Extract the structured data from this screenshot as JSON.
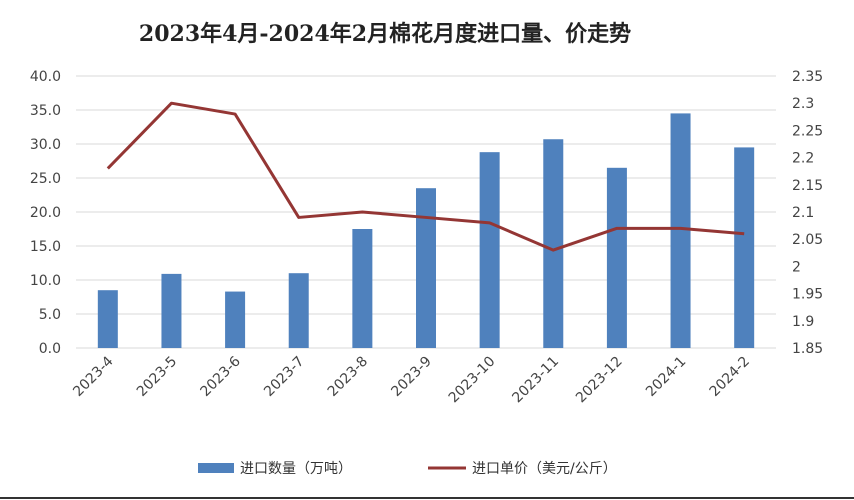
{
  "chart_data": {
    "type": "bar",
    "title": "2023年4月-2024年2月棉花月度进口量、价走势",
    "categories": [
      "2023-4",
      "2023-5",
      "2023-6",
      "2023-7",
      "2023-8",
      "2023-9",
      "2023-10",
      "2023-11",
      "2023-12",
      "2024-1",
      "2024-2"
    ],
    "series": [
      {
        "name": "进口数量（万吨）",
        "kind": "bar",
        "axis": "left",
        "color": "#4f81bd",
        "values": [
          8.5,
          10.9,
          8.3,
          11.0,
          17.5,
          23.5,
          28.8,
          30.7,
          26.5,
          34.5,
          29.5
        ]
      },
      {
        "name": "进口单价（美元/公斤）",
        "kind": "line",
        "axis": "right",
        "color": "#943634",
        "values": [
          2.18,
          2.3,
          2.28,
          2.09,
          2.1,
          2.09,
          2.08,
          2.03,
          2.07,
          2.07,
          2.06
        ]
      }
    ],
    "y_left": {
      "ylim": [
        0,
        40
      ],
      "ticks": [
        "0.0",
        "5.0",
        "10.0",
        "15.0",
        "20.0",
        "25.0",
        "30.0",
        "35.0",
        "40.0"
      ]
    },
    "y_right": {
      "ylim": [
        1.85,
        2.35
      ],
      "ticks": [
        "1.85",
        "1.9",
        "1.95",
        "2",
        "2.05",
        "2.1",
        "2.15",
        "2.2",
        "2.25",
        "2.3",
        "2.35"
      ]
    },
    "grid": true,
    "legend_position": "bottom"
  }
}
